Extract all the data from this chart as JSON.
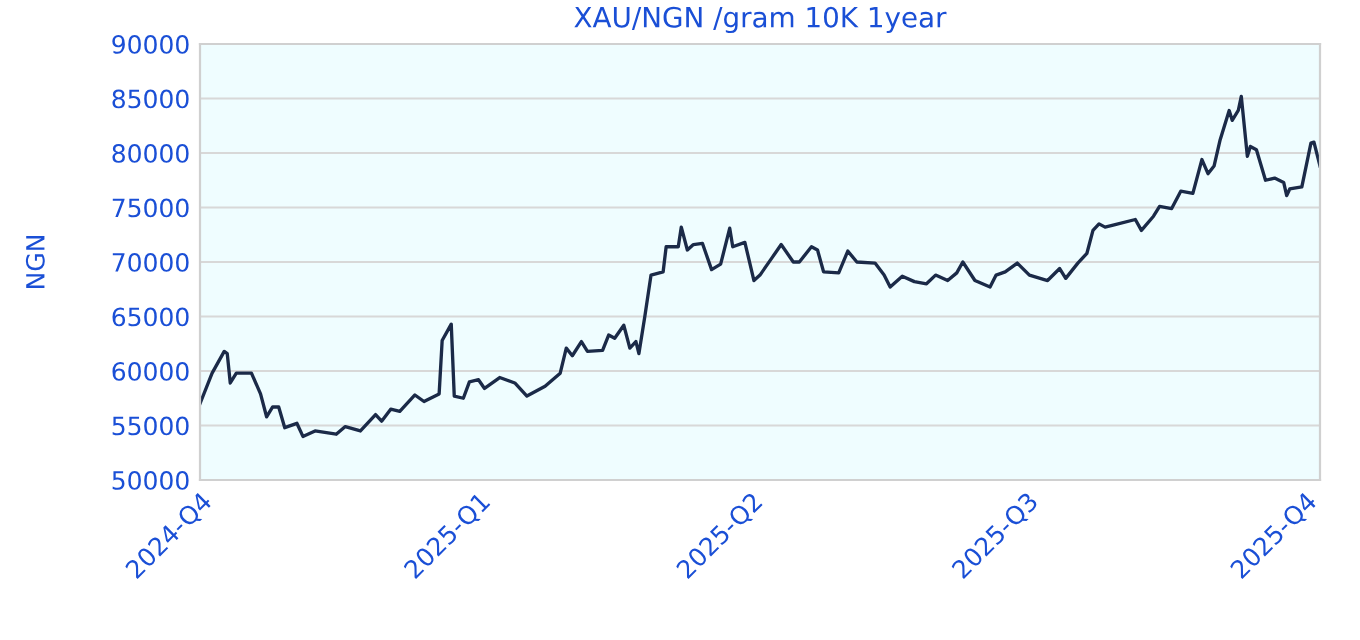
{
  "chart_data": {
    "type": "line",
    "title": "XAU/NGN /gram 10K 1year",
    "ylabel": "NGN",
    "x": [
      "2024-10-01",
      "2024-10-05",
      "2024-10-09",
      "2024-10-10",
      "2024-10-11",
      "2024-10-13",
      "2024-10-18",
      "2024-10-21",
      "2024-10-23",
      "2024-10-25",
      "2024-10-27",
      "2024-10-29",
      "2024-11-02",
      "2024-11-04",
      "2024-11-08",
      "2024-11-15",
      "2024-11-18",
      "2024-11-23",
      "2024-11-28",
      "2024-11-30",
      "2024-12-03",
      "2024-12-06",
      "2024-12-11",
      "2024-12-14",
      "2024-12-19",
      "2024-12-20",
      "2024-12-23",
      "2024-12-24",
      "2024-12-27",
      "2024-12-29",
      "2025-01-01",
      "2025-01-03",
      "2025-01-08",
      "2025-01-13",
      "2025-01-17",
      "2025-01-23",
      "2025-01-28",
      "2025-01-30",
      "2025-02-01",
      "2025-02-04",
      "2025-02-06",
      "2025-02-11",
      "2025-02-13",
      "2025-02-15",
      "2025-02-18",
      "2025-02-20",
      "2025-02-22",
      "2025-02-23",
      "2025-02-25",
      "2025-02-27",
      "2025-03-03",
      "2025-03-04",
      "2025-03-08",
      "2025-03-09",
      "2025-03-11",
      "2025-03-13",
      "2025-03-16",
      "2025-03-19",
      "2025-03-22",
      "2025-03-25",
      "2025-03-26",
      "2025-03-30",
      "2025-04-02",
      "2025-04-04",
      "2025-04-08",
      "2025-04-11",
      "2025-04-15",
      "2025-04-17",
      "2025-04-21",
      "2025-04-23",
      "2025-04-25",
      "2025-04-30",
      "2025-05-03",
      "2025-05-06",
      "2025-05-12",
      "2025-05-15",
      "2025-05-17",
      "2025-05-21",
      "2025-05-25",
      "2025-05-29",
      "2025-06-01",
      "2025-06-05",
      "2025-06-08",
      "2025-06-10",
      "2025-06-14",
      "2025-06-19",
      "2025-06-21",
      "2025-06-24",
      "2025-06-28",
      "2025-07-02",
      "2025-07-08",
      "2025-07-12",
      "2025-07-14",
      "2025-07-18",
      "2025-07-21",
      "2025-07-23",
      "2025-07-25",
      "2025-07-27",
      "2025-07-30",
      "2025-08-06",
      "2025-08-08",
      "2025-08-12",
      "2025-08-14",
      "2025-08-18",
      "2025-08-21",
      "2025-08-25",
      "2025-08-28",
      "2025-08-30",
      "2025-09-01",
      "2025-09-03",
      "2025-09-06",
      "2025-09-07",
      "2025-09-09",
      "2025-09-10",
      "2025-09-12",
      "2025-09-13",
      "2025-09-15",
      "2025-09-18",
      "2025-09-21",
      "2025-09-24",
      "2025-09-25",
      "2025-09-26",
      "2025-09-30",
      "2025-10-03",
      "2025-10-04",
      "2025-10-06"
    ],
    "series": [
      {
        "color": "#1b2a48",
        "values": [
          57000,
          59800,
          61800,
          61600,
          58900,
          59800,
          59800,
          57900,
          55800,
          56700,
          56700,
          54800,
          55200,
          54000,
          54500,
          54200,
          54900,
          54500,
          56000,
          55400,
          56500,
          56300,
          57800,
          57200,
          57900,
          62800,
          64300,
          57700,
          57500,
          59000,
          59200,
          58400,
          59400,
          58900,
          57700,
          58600,
          59800,
          62100,
          61400,
          62700,
          61800,
          61900,
          63300,
          63000,
          64200,
          62100,
          62700,
          61600,
          65100,
          68800,
          69100,
          71400,
          71400,
          73200,
          71100,
          71600,
          71700,
          69300,
          69800,
          73100,
          71400,
          71800,
          68300,
          68800,
          70400,
          71600,
          70000,
          70000,
          71400,
          71100,
          69100,
          69000,
          71000,
          70000,
          69900,
          68800,
          67700,
          68700,
          68200,
          68000,
          68800,
          68300,
          69000,
          70000,
          68300,
          67700,
          68800,
          69100,
          69900,
          68800,
          68300,
          69400,
          68500,
          69900,
          70800,
          72900,
          73500,
          73200,
          73400,
          73900,
          72900,
          74200,
          75100,
          74900,
          76500,
          76300,
          79400,
          78100,
          78800,
          81200,
          83900,
          83000,
          83900,
          85200,
          79700,
          80600,
          80300,
          77500,
          77700,
          77300,
          76100,
          76700,
          76900,
          80900,
          81000,
          78800
        ]
      }
    ],
    "xlim": [
      "2024-10-01",
      "2025-10-06"
    ],
    "xticks": [
      {
        "value": "2024-10-01",
        "label": "2024-Q4"
      },
      {
        "value": "2025-01-01",
        "label": "2025-Q1"
      },
      {
        "value": "2025-04-01",
        "label": "2025-Q2"
      },
      {
        "value": "2025-07-01",
        "label": "2025-Q3"
      },
      {
        "value": "2025-10-01",
        "label": "2025-Q4"
      }
    ],
    "ylim": [
      50000,
      90000
    ],
    "yticks": [
      50000,
      55000,
      60000,
      65000,
      70000,
      75000,
      80000,
      85000,
      90000
    ],
    "grid": "y",
    "marker": "none",
    "line_style": "solid"
  }
}
